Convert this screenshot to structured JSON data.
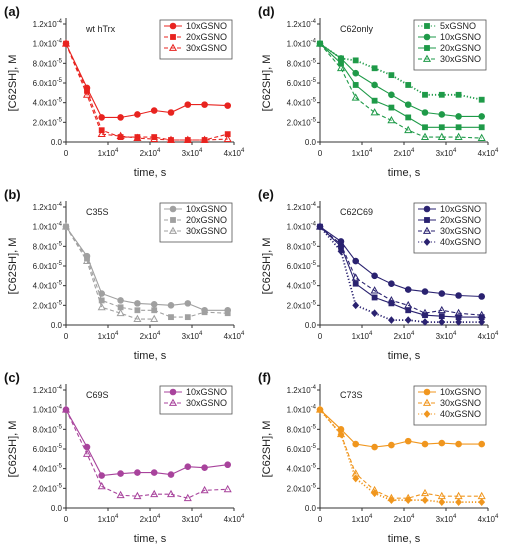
{
  "chart_data": [
    {
      "id": "a",
      "type": "line",
      "panel_label": "(a)",
      "annotation": "wt hTrx",
      "color": "#e8231f",
      "ylabel": "[C62SH], M",
      "xlabel": "time, s",
      "xlim": [
        0,
        40000
      ],
      "ylim": [
        0,
        0.00012
      ],
      "xticks": [
        0,
        10000,
        20000,
        30000,
        40000
      ],
      "xtick_labels": [
        {
          "base": "0",
          "exp": ""
        },
        {
          "base": "1x10",
          "exp": "4"
        },
        {
          "base": "2x10",
          "exp": "4"
        },
        {
          "base": "3x10",
          "exp": "4"
        },
        {
          "base": "4x10",
          "exp": "4"
        }
      ],
      "yticks": [
        0,
        2e-05,
        4e-05,
        6e-05,
        8e-05,
        0.0001,
        0.00012
      ],
      "ytick_labels": [
        {
          "base": "0.0",
          "exp": ""
        },
        {
          "base": "2.0x10",
          "exp": "-5"
        },
        {
          "base": "4.0x10",
          "exp": "-5"
        },
        {
          "base": "6.0x10",
          "exp": "-5"
        },
        {
          "base": "8.0x10",
          "exp": "-5"
        },
        {
          "base": "1.0x10",
          "exp": "-4"
        },
        {
          "base": "1.2x10",
          "exp": "-4"
        }
      ],
      "series": [
        {
          "name": "10xGSNO",
          "marker": "circle",
          "dash": "solid",
          "x": [
            0,
            5000,
            8500,
            13000,
            17000,
            21000,
            25000,
            29000,
            33000,
            38500
          ],
          "y": [
            0.0001,
            5.5e-05,
            2.5e-05,
            2.5e-05,
            2.8e-05,
            3.2e-05,
            3e-05,
            3.8e-05,
            3.8e-05,
            3.7e-05
          ]
        },
        {
          "name": "20xGSNO",
          "marker": "square",
          "dash": "dashed",
          "x": [
            0,
            5000,
            8500,
            13000,
            17000,
            21000,
            25000,
            29000,
            33000,
            38500
          ],
          "y": [
            0.0001,
            5.2e-05,
            1.2e-05,
            5e-06,
            5e-06,
            5e-06,
            2e-06,
            2e-06,
            2e-06,
            8e-06
          ]
        },
        {
          "name": "30xGSNO",
          "marker": "triangle",
          "dash": "dashed",
          "x": [
            0,
            5000,
            8500,
            13000,
            17000,
            21000,
            25000,
            29000,
            33000,
            38500
          ],
          "y": [
            0.0001,
            4.8e-05,
            8e-06,
            6e-06,
            4e-06,
            3e-06,
            2e-06,
            2e-06,
            2e-06,
            3e-06
          ]
        }
      ],
      "legend": "top-right"
    },
    {
      "id": "d",
      "type": "line",
      "panel_label": "(d)",
      "annotation": "C62only",
      "color": "#1e9a48",
      "ylabel": "[C62SH], M",
      "xlabel": "time, s",
      "xlim": [
        0,
        40000
      ],
      "ylim": [
        0,
        0.00012
      ],
      "xticks": [
        0,
        10000,
        20000,
        30000,
        40000
      ],
      "xtick_labels": [
        {
          "base": "0",
          "exp": ""
        },
        {
          "base": "1x10",
          "exp": "4"
        },
        {
          "base": "2x10",
          "exp": "4"
        },
        {
          "base": "3x10",
          "exp": "4"
        },
        {
          "base": "4x10",
          "exp": "4"
        }
      ],
      "yticks": [
        0,
        2e-05,
        4e-05,
        6e-05,
        8e-05,
        0.0001,
        0.00012
      ],
      "ytick_labels": [
        {
          "base": "0.0",
          "exp": ""
        },
        {
          "base": "2.0x10",
          "exp": "-5"
        },
        {
          "base": "4.0x10",
          "exp": "-5"
        },
        {
          "base": "6.0x10",
          "exp": "-5"
        },
        {
          "base": "8.0x10",
          "exp": "-5"
        },
        {
          "base": "1.0x10",
          "exp": "-4"
        },
        {
          "base": "1.2x10",
          "exp": "-4"
        }
      ],
      "series": [
        {
          "name": "5xGSNO",
          "marker": "square",
          "dash": "dotted",
          "x": [
            0,
            5000,
            8500,
            13000,
            17000,
            21000,
            25000,
            29000,
            33000,
            38500
          ],
          "y": [
            0.0001,
            8.5e-05,
            8.3e-05,
            7.5e-05,
            6.8e-05,
            5.8e-05,
            4.8e-05,
            4.8e-05,
            4.8e-05,
            4.3e-05
          ]
        },
        {
          "name": "10xGSNO",
          "marker": "circle",
          "dash": "solid",
          "x": [
            0,
            5000,
            8500,
            13000,
            17000,
            21000,
            25000,
            29000,
            33000,
            38500
          ],
          "y": [
            0.0001,
            8.5e-05,
            7e-05,
            5.8e-05,
            4.8e-05,
            3.8e-05,
            3e-05,
            2.8e-05,
            2.6e-05,
            2.6e-05
          ]
        },
        {
          "name": "20xGSNO",
          "marker": "square",
          "dash": "solid",
          "x": [
            0,
            5000,
            8500,
            13000,
            17000,
            21000,
            25000,
            29000,
            33000,
            38500
          ],
          "y": [
            0.0001,
            8e-05,
            5.8e-05,
            4.2e-05,
            3.5e-05,
            2.5e-05,
            1.5e-05,
            1.5e-05,
            1.5e-05,
            1.5e-05
          ]
        },
        {
          "name": "30xGSNO",
          "marker": "triangle",
          "dash": "dashed",
          "x": [
            0,
            5000,
            8500,
            13000,
            17000,
            21000,
            25000,
            29000,
            33000,
            38500
          ],
          "y": [
            0.0001,
            7.5e-05,
            4.5e-05,
            3e-05,
            2.2e-05,
            1.2e-05,
            5e-06,
            5e-06,
            5e-06,
            4e-06
          ]
        }
      ],
      "legend": "top-right"
    },
    {
      "id": "b",
      "type": "line",
      "panel_label": "(b)",
      "annotation": "C35S",
      "color": "#a0a0a0",
      "ylabel": "[C62SH], M",
      "xlabel": "time, s",
      "xlim": [
        0,
        40000
      ],
      "ylim": [
        0,
        0.00012
      ],
      "xticks": [
        0,
        10000,
        20000,
        30000,
        40000
      ],
      "xtick_labels": [
        {
          "base": "0",
          "exp": ""
        },
        {
          "base": "1x10",
          "exp": "4"
        },
        {
          "base": "2x10",
          "exp": "4"
        },
        {
          "base": "3x10",
          "exp": "4"
        },
        {
          "base": "4x10",
          "exp": "4"
        }
      ],
      "yticks": [
        0,
        2e-05,
        4e-05,
        6e-05,
        8e-05,
        0.0001,
        0.00012
      ],
      "ytick_labels": [
        {
          "base": "0.0",
          "exp": ""
        },
        {
          "base": "2.0x10",
          "exp": "-5"
        },
        {
          "base": "4.0x10",
          "exp": "-5"
        },
        {
          "base": "6.0x10",
          "exp": "-5"
        },
        {
          "base": "8.0x10",
          "exp": "-5"
        },
        {
          "base": "1.0x10",
          "exp": "-4"
        },
        {
          "base": "1.2x10",
          "exp": "-4"
        }
      ],
      "series": [
        {
          "name": "10xGSNO",
          "marker": "circle",
          "dash": "solid",
          "x": [
            0,
            5000,
            8500,
            13000,
            17000,
            21000,
            25000,
            29000,
            33000,
            38500
          ],
          "y": [
            0.0001,
            7e-05,
            3.2e-05,
            2.5e-05,
            2.2e-05,
            2.1e-05,
            2e-05,
            2.2e-05,
            1.5e-05,
            1.5e-05
          ]
        },
        {
          "name": "20xGSNO",
          "marker": "square",
          "dash": "dashed",
          "x": [
            0,
            5000,
            8500,
            13000,
            17000,
            21000,
            25000,
            29000,
            33000,
            38500
          ],
          "y": [
            0.0001,
            6.8e-05,
            2.5e-05,
            1.8e-05,
            1.5e-05,
            1.5e-05,
            8e-06,
            8e-06,
            1.3e-05,
            1.2e-05
          ]
        },
        {
          "name": "30xGSNO",
          "marker": "triangle",
          "dash": "dashed",
          "x": [
            0,
            5000,
            8500,
            13000,
            17000,
            21000
          ],
          "y": [
            0.0001,
            6.5e-05,
            1.8e-05,
            1.2e-05,
            6e-06,
            6e-06
          ]
        }
      ],
      "legend": "top-right"
    },
    {
      "id": "e",
      "type": "line",
      "panel_label": "(e)",
      "annotation": "C62C69",
      "color": "#2a2270",
      "ylabel": "[C62SH], M",
      "xlabel": "time, s",
      "xlim": [
        0,
        40000
      ],
      "ylim": [
        0,
        0.00012
      ],
      "xticks": [
        0,
        10000,
        20000,
        30000,
        40000
      ],
      "xtick_labels": [
        {
          "base": "0",
          "exp": ""
        },
        {
          "base": "1x10",
          "exp": "4"
        },
        {
          "base": "2x10",
          "exp": "4"
        },
        {
          "base": "3x10",
          "exp": "4"
        },
        {
          "base": "4x10",
          "exp": "4"
        }
      ],
      "yticks": [
        0,
        2e-05,
        4e-05,
        6e-05,
        8e-05,
        0.0001,
        0.00012
      ],
      "ytick_labels": [
        {
          "base": "0.0",
          "exp": ""
        },
        {
          "base": "2.0x10",
          "exp": "-5"
        },
        {
          "base": "4.0x10",
          "exp": "-5"
        },
        {
          "base": "6.0x10",
          "exp": "-5"
        },
        {
          "base": "8.0x10",
          "exp": "-5"
        },
        {
          "base": "1.0x10",
          "exp": "-4"
        },
        {
          "base": "1.2x10",
          "exp": "-4"
        }
      ],
      "series": [
        {
          "name": "10xGSNO",
          "marker": "circle",
          "dash": "solid",
          "x": [
            0,
            5000,
            8500,
            13000,
            17000,
            21000,
            25000,
            29000,
            33000,
            38500
          ],
          "y": [
            0.0001,
            8.5e-05,
            6.5e-05,
            5e-05,
            4.2e-05,
            3.6e-05,
            3.4e-05,
            3.2e-05,
            3e-05,
            2.9e-05
          ]
        },
        {
          "name": "20xGSNO",
          "marker": "square",
          "dash": "solid",
          "x": [
            0,
            5000,
            8500,
            13000,
            17000,
            21000,
            25000,
            29000,
            33000,
            38500
          ],
          "y": [
            0.0001,
            8e-05,
            4.2e-05,
            2.8e-05,
            2.2e-05,
            1.5e-05,
            1e-05,
            9e-06,
            8e-06,
            8e-06
          ]
        },
        {
          "name": "30xGSNO",
          "marker": "triangle",
          "dash": "dashed",
          "x": [
            0,
            5000,
            8500,
            13000,
            17000,
            21000,
            25000,
            29000,
            33000,
            38500
          ],
          "y": [
            0.0001,
            8.2e-05,
            4.8e-05,
            3.5e-05,
            2.5e-05,
            2e-05,
            1.2e-05,
            1.5e-05,
            1.2e-05,
            1e-05
          ]
        },
        {
          "name": "40xGSNO",
          "marker": "diamond",
          "dash": "dotted",
          "x": [
            0,
            5000,
            8500,
            13000,
            17000,
            21000,
            25000,
            29000,
            33000,
            38500
          ],
          "y": [
            0.0001,
            7.5e-05,
            2e-05,
            1.2e-05,
            5e-06,
            5e-06,
            3e-06,
            3e-06,
            3e-06,
            3e-06
          ]
        }
      ],
      "legend": "top-right"
    },
    {
      "id": "c",
      "type": "line",
      "panel_label": "(c)",
      "annotation": "C69S",
      "color": "#a8439c",
      "ylabel": "[C62SH], M",
      "xlabel": "time, s",
      "xlim": [
        0,
        40000
      ],
      "ylim": [
        0,
        0.00012
      ],
      "xticks": [
        0,
        10000,
        20000,
        30000,
        40000
      ],
      "xtick_labels": [
        {
          "base": "0",
          "exp": ""
        },
        {
          "base": "1x10",
          "exp": "4"
        },
        {
          "base": "2x10",
          "exp": "4"
        },
        {
          "base": "3x10",
          "exp": "4"
        },
        {
          "base": "4x10",
          "exp": "4"
        }
      ],
      "yticks": [
        0,
        2e-05,
        4e-05,
        6e-05,
        8e-05,
        0.0001,
        0.00012
      ],
      "ytick_labels": [
        {
          "base": "0.0",
          "exp": ""
        },
        {
          "base": "2.0x10",
          "exp": "-5"
        },
        {
          "base": "4.0x10",
          "exp": "-5"
        },
        {
          "base": "6.0x10",
          "exp": "-5"
        },
        {
          "base": "8.0x10",
          "exp": "-5"
        },
        {
          "base": "1.0x10",
          "exp": "-4"
        },
        {
          "base": "1.2x10",
          "exp": "-4"
        }
      ],
      "series": [
        {
          "name": "10xGSNO",
          "marker": "circle",
          "dash": "solid",
          "x": [
            0,
            5000,
            8500,
            13000,
            17000,
            21000,
            25000,
            29000,
            33000,
            38500
          ],
          "y": [
            0.0001,
            6.2e-05,
            3.3e-05,
            3.5e-05,
            3.6e-05,
            3.6e-05,
            3.4e-05,
            4.2e-05,
            4.1e-05,
            4.4e-05
          ]
        },
        {
          "name": "30xGSNO",
          "marker": "triangle",
          "dash": "dashed",
          "x": [
            0,
            5000,
            8500,
            13000,
            17000,
            21000,
            25000,
            29000,
            33000,
            38500
          ],
          "y": [
            0.0001,
            5.5e-05,
            2.2e-05,
            1.3e-05,
            1.2e-05,
            1.4e-05,
            1.4e-05,
            1e-05,
            1.8e-05,
            1.9e-05
          ]
        }
      ],
      "legend": "top-right"
    },
    {
      "id": "f",
      "type": "line",
      "panel_label": "(f)",
      "annotation": "C73S",
      "color": "#f0961e",
      "ylabel": "[C62SH], M",
      "xlabel": "time, s",
      "xlim": [
        0,
        40000
      ],
      "ylim": [
        0,
        0.00012
      ],
      "xticks": [
        0,
        10000,
        20000,
        30000,
        40000
      ],
      "xtick_labels": [
        {
          "base": "0",
          "exp": ""
        },
        {
          "base": "1x10",
          "exp": "4"
        },
        {
          "base": "2x10",
          "exp": "4"
        },
        {
          "base": "3x10",
          "exp": "4"
        },
        {
          "base": "4x10",
          "exp": "4"
        }
      ],
      "yticks": [
        0,
        2e-05,
        4e-05,
        6e-05,
        8e-05,
        0.0001,
        0.00012
      ],
      "ytick_labels": [
        {
          "base": "0.0",
          "exp": ""
        },
        {
          "base": "2.0x10",
          "exp": "-5"
        },
        {
          "base": "4.0x10",
          "exp": "-5"
        },
        {
          "base": "6.0x10",
          "exp": "-5"
        },
        {
          "base": "8.0x10",
          "exp": "-5"
        },
        {
          "base": "1.0x10",
          "exp": "-4"
        },
        {
          "base": "1.2x10",
          "exp": "-4"
        }
      ],
      "series": [
        {
          "name": "10xGSNO",
          "marker": "circle",
          "dash": "solid",
          "x": [
            0,
            5000,
            8500,
            13000,
            17000,
            21000,
            25000,
            29000,
            33000,
            38500
          ],
          "y": [
            0.0001,
            8e-05,
            6.5e-05,
            6.2e-05,
            6.4e-05,
            6.8e-05,
            6.5e-05,
            6.6e-05,
            6.5e-05,
            6.5e-05
          ]
        },
        {
          "name": "30xGSNO",
          "marker": "triangle",
          "dash": "dashed",
          "x": [
            0,
            5000,
            8500,
            13000,
            17000,
            21000,
            25000,
            29000,
            33000,
            38500
          ],
          "y": [
            0.0001,
            7.5e-05,
            3.5e-05,
            1.8e-05,
            1e-05,
            1e-05,
            1.5e-05,
            1.2e-05,
            1.2e-05,
            1.2e-05
          ]
        },
        {
          "name": "40xGSNO",
          "marker": "diamond",
          "dash": "dotted",
          "x": [
            0,
            5000,
            8500,
            13000,
            17000,
            21000,
            25000,
            29000,
            33000,
            38500
          ],
          "y": [
            0.0001,
            7.5e-05,
            3e-05,
            1.5e-05,
            8e-06,
            8e-06,
            8e-06,
            6e-06,
            6e-06,
            6e-06
          ]
        }
      ],
      "legend": "top-right"
    }
  ]
}
